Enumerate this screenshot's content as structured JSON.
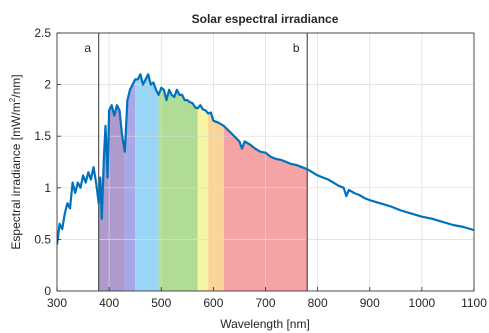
{
  "chart_data": {
    "type": "line",
    "title": "Solar espectral irradiance",
    "xlabel": "Wavelength [nm]",
    "ylabel_main": "Espectral irradiance [mW/m",
    "ylabel_sup": "2",
    "ylabel_end": "/nm]",
    "xlim": [
      300,
      1100
    ],
    "ylim": [
      0,
      2.5
    ],
    "xticks": [
      "300",
      "400",
      "500",
      "600",
      "700",
      "800",
      "900",
      "1000",
      "1100"
    ],
    "yticks": [
      "0",
      "0.5",
      "1",
      "1.5",
      "2",
      "2.5"
    ],
    "grid": true,
    "line_color": "#0072BD",
    "markers": [
      {
        "label": "a",
        "x": 380
      },
      {
        "label": "b",
        "x": 780
      }
    ],
    "spectrum_bands": [
      {
        "from": 380,
        "to": 430,
        "color": "#a58fc7"
      },
      {
        "from": 430,
        "to": 450,
        "color": "#9f9fe6"
      },
      {
        "from": 450,
        "to": 495,
        "color": "#8fd0f5"
      },
      {
        "from": 495,
        "to": 570,
        "color": "#a9d88a"
      },
      {
        "from": 570,
        "to": 590,
        "color": "#f4f49a"
      },
      {
        "from": 590,
        "to": 620,
        "color": "#fbd08c"
      },
      {
        "from": 620,
        "to": 780,
        "color": "#f4999a"
      }
    ],
    "series": [
      {
        "x": [
          300,
          305,
          310,
          315,
          320,
          325,
          330,
          335,
          340,
          345,
          350,
          355,
          360,
          365,
          370,
          375,
          380,
          383,
          386,
          390,
          393,
          397,
          400,
          405,
          410,
          415,
          420,
          425,
          430,
          435,
          440,
          445,
          450,
          455,
          460,
          465,
          470,
          475,
          480,
          485,
          490,
          495,
          500,
          505,
          510,
          515,
          520,
          525,
          530,
          535,
          540,
          545,
          550,
          555,
          560,
          565,
          570,
          575,
          580,
          585,
          590,
          595,
          600,
          610,
          620,
          630,
          640,
          650,
          655,
          660,
          670,
          680,
          690,
          700,
          710,
          720,
          730,
          740,
          750,
          760,
          770,
          780,
          790,
          800,
          810,
          820,
          830,
          840,
          850,
          855,
          860,
          870,
          880,
          890,
          900,
          920,
          940,
          960,
          980,
          1000,
          1020,
          1040,
          1060,
          1080,
          1100
        ],
        "y": [
          0.45,
          0.65,
          0.6,
          0.75,
          0.85,
          0.8,
          1.05,
          0.95,
          1.05,
          1.0,
          1.12,
          1.05,
          1.15,
          1.08,
          1.2,
          1.05,
          0.85,
          1.1,
          0.7,
          1.3,
          1.6,
          1.1,
          1.75,
          1.8,
          1.7,
          1.8,
          1.75,
          1.5,
          1.35,
          1.85,
          1.95,
          2.0,
          2.05,
          2.05,
          2.1,
          2.0,
          2.05,
          2.1,
          2.0,
          2.02,
          1.95,
          1.9,
          1.97,
          1.95,
          1.85,
          1.95,
          1.9,
          1.88,
          1.95,
          1.9,
          1.9,
          1.85,
          1.85,
          1.83,
          1.82,
          1.78,
          1.77,
          1.8,
          1.76,
          1.75,
          1.72,
          1.73,
          1.65,
          1.63,
          1.6,
          1.55,
          1.5,
          1.45,
          1.38,
          1.45,
          1.42,
          1.38,
          1.35,
          1.34,
          1.3,
          1.28,
          1.27,
          1.25,
          1.23,
          1.22,
          1.2,
          1.18,
          1.15,
          1.12,
          1.1,
          1.08,
          1.05,
          1.02,
          1.0,
          0.92,
          0.98,
          0.95,
          0.93,
          0.9,
          0.88,
          0.85,
          0.82,
          0.78,
          0.75,
          0.72,
          0.7,
          0.67,
          0.64,
          0.62,
          0.59
        ]
      }
    ]
  }
}
